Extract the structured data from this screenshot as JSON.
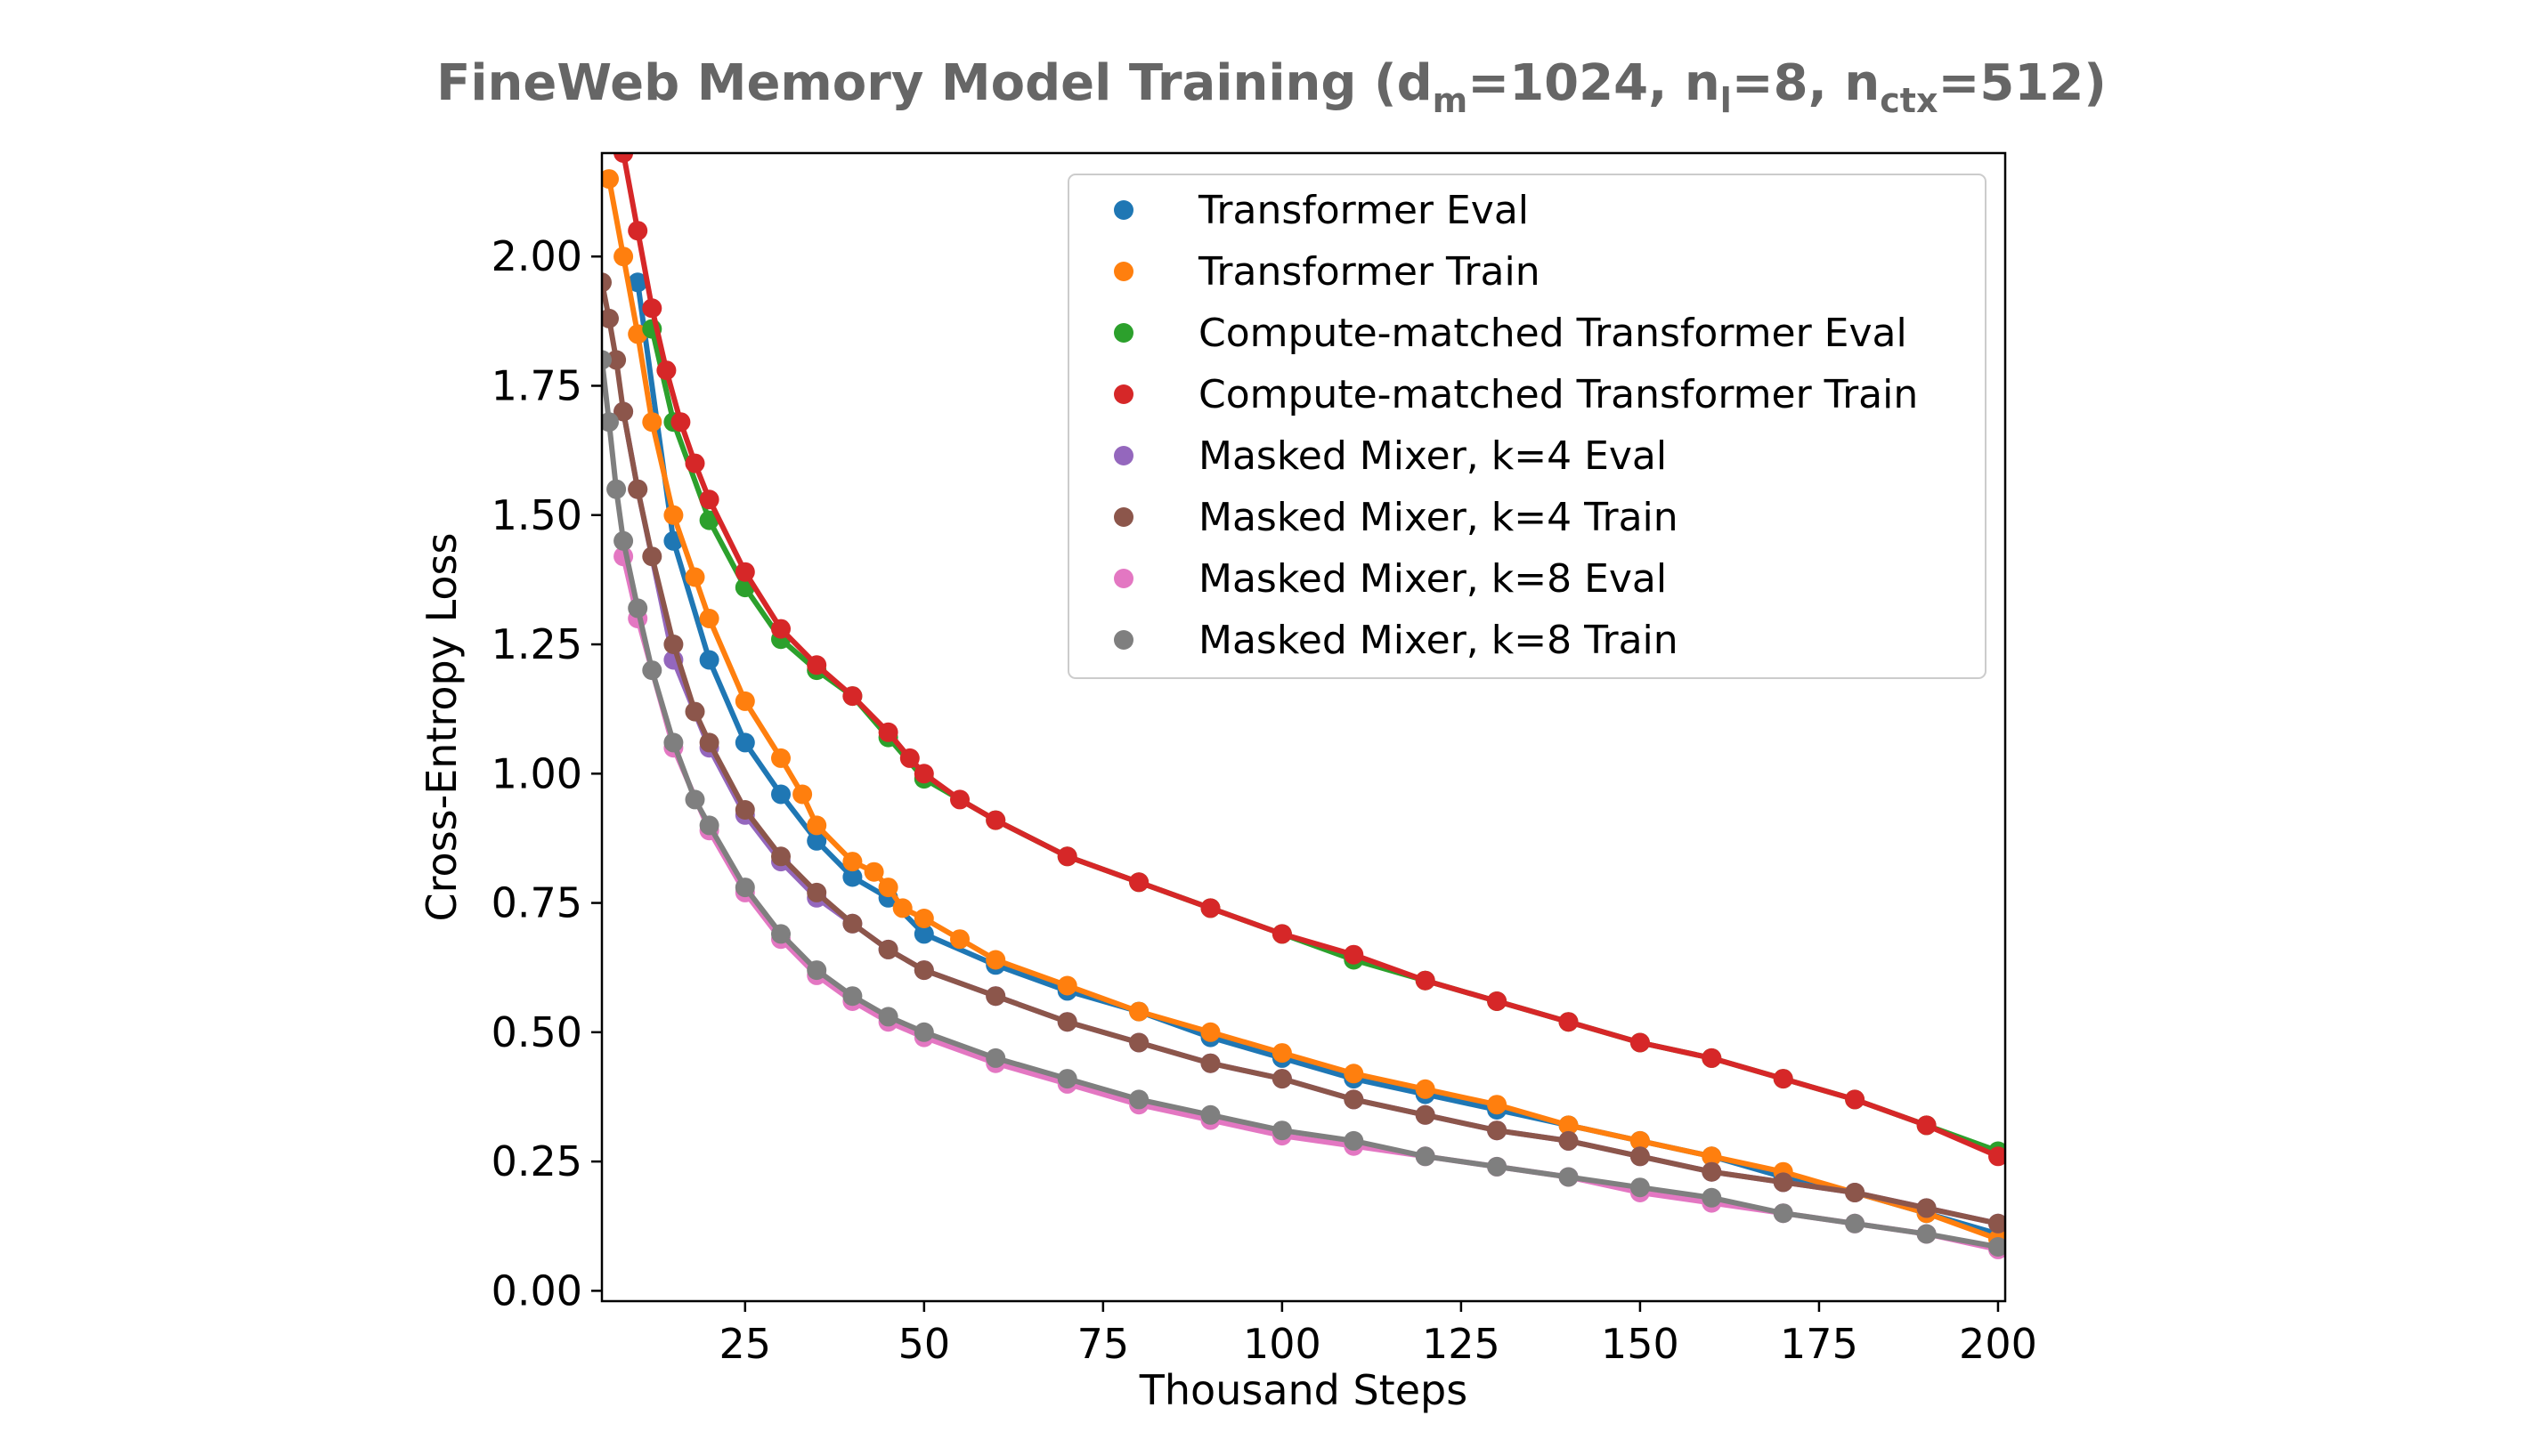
{
  "chart_data": {
    "type": "line",
    "title": {
      "main": "FineWeb Memory Model Training (d",
      "sub_m": "m",
      "part2": "=1024, n",
      "sub_l": "l",
      "part3": "=8, n",
      "sub_ctx": "ctx",
      "part4": "=512)"
    },
    "xlabel": "Thousand Steps",
    "ylabel": "Cross-Entropy Loss",
    "xlim": [
      5,
      201
    ],
    "ylim": [
      -0.02,
      2.2
    ],
    "xticks": [
      25,
      50,
      75,
      100,
      125,
      150,
      175,
      200
    ],
    "xtick_labels": [
      "25",
      "50",
      "75",
      "100",
      "125",
      "150",
      "175",
      "200"
    ],
    "yticks": [
      0.0,
      0.25,
      0.5,
      0.75,
      1.0,
      1.25,
      1.5,
      1.75,
      2.0
    ],
    "ytick_labels": [
      "0.00",
      "0.25",
      "0.50",
      "0.75",
      "1.00",
      "1.25",
      "1.50",
      "1.75",
      "2.00"
    ],
    "grid": false,
    "legend_position": "top-right",
    "series": [
      {
        "name": "Transformer Eval",
        "color": "#1f77b4",
        "x": [
          10,
          15,
          20,
          25,
          30,
          35,
          40,
          45,
          50,
          60,
          70,
          80,
          90,
          100,
          110,
          120,
          130,
          140,
          150,
          160,
          170,
          180,
          190,
          200
        ],
        "y": [
          1.95,
          1.45,
          1.22,
          1.06,
          0.96,
          0.87,
          0.8,
          0.76,
          0.69,
          0.63,
          0.58,
          0.54,
          0.49,
          0.45,
          0.41,
          0.38,
          0.35,
          0.32,
          0.29,
          0.26,
          0.22,
          0.19,
          0.15,
          0.11
        ]
      },
      {
        "name": "Transformer Train",
        "color": "#ff7f0e",
        "x": [
          6,
          8,
          10,
          12,
          15,
          18,
          20,
          25,
          30,
          33,
          35,
          40,
          43,
          45,
          47,
          50,
          55,
          60,
          70,
          80,
          90,
          100,
          110,
          120,
          130,
          140,
          150,
          160,
          170,
          180,
          190,
          200
        ],
        "y": [
          2.15,
          2.0,
          1.85,
          1.68,
          1.5,
          1.38,
          1.3,
          1.14,
          1.03,
          0.96,
          0.9,
          0.83,
          0.81,
          0.78,
          0.74,
          0.72,
          0.68,
          0.64,
          0.59,
          0.54,
          0.5,
          0.46,
          0.42,
          0.39,
          0.36,
          0.32,
          0.29,
          0.26,
          0.23,
          0.19,
          0.15,
          0.1
        ]
      },
      {
        "name": "Compute-matched Transformer Eval",
        "color": "#2ca02c",
        "x": [
          12,
          15,
          20,
          25,
          30,
          35,
          40,
          45,
          50,
          60,
          70,
          80,
          90,
          100,
          110,
          120,
          130,
          140,
          150,
          160,
          170,
          180,
          190,
          200
        ],
        "y": [
          1.86,
          1.68,
          1.49,
          1.36,
          1.26,
          1.2,
          1.15,
          1.07,
          0.99,
          0.91,
          0.84,
          0.79,
          0.74,
          0.69,
          0.64,
          0.6,
          0.56,
          0.52,
          0.48,
          0.45,
          0.41,
          0.37,
          0.32,
          0.27
        ]
      },
      {
        "name": "Compute-matched Transformer Train",
        "color": "#d62728",
        "x": [
          8,
          10,
          12,
          14,
          16,
          18,
          20,
          25,
          30,
          35,
          40,
          45,
          48,
          50,
          55,
          60,
          70,
          80,
          90,
          100,
          110,
          120,
          130,
          140,
          150,
          160,
          170,
          180,
          190,
          200
        ],
        "y": [
          2.2,
          2.05,
          1.9,
          1.78,
          1.68,
          1.6,
          1.53,
          1.39,
          1.28,
          1.21,
          1.15,
          1.08,
          1.03,
          1.0,
          0.95,
          0.91,
          0.84,
          0.79,
          0.74,
          0.69,
          0.65,
          0.6,
          0.56,
          0.52,
          0.48,
          0.45,
          0.41,
          0.37,
          0.32,
          0.26
        ]
      },
      {
        "name": "Masked Mixer, k=4 Eval",
        "color": "#9467bd",
        "x": [
          8,
          10,
          15,
          20,
          25,
          30,
          35,
          40,
          45,
          50,
          60,
          70,
          80,
          90,
          100,
          110,
          120,
          130,
          140,
          150,
          160,
          170,
          180,
          190,
          200
        ],
        "y": [
          1.7,
          1.55,
          1.22,
          1.05,
          0.92,
          0.83,
          0.76,
          0.71,
          0.66,
          0.62,
          0.57,
          0.52,
          0.48,
          0.44,
          0.41,
          0.37,
          0.34,
          0.31,
          0.29,
          0.26,
          0.23,
          0.21,
          0.19,
          0.16,
          0.13
        ]
      },
      {
        "name": "Masked Mixer, k=4 Train",
        "color": "#8c564b",
        "x": [
          5,
          6,
          7,
          8,
          10,
          12,
          15,
          18,
          20,
          25,
          30,
          35,
          40,
          45,
          50,
          60,
          70,
          80,
          90,
          100,
          110,
          120,
          130,
          140,
          150,
          160,
          170,
          180,
          190,
          200
        ],
        "y": [
          1.95,
          1.88,
          1.8,
          1.7,
          1.55,
          1.42,
          1.25,
          1.12,
          1.06,
          0.93,
          0.84,
          0.77,
          0.71,
          0.66,
          0.62,
          0.57,
          0.52,
          0.48,
          0.44,
          0.41,
          0.37,
          0.34,
          0.31,
          0.29,
          0.26,
          0.23,
          0.21,
          0.19,
          0.16,
          0.13
        ]
      },
      {
        "name": "Masked Mixer, k=8 Eval",
        "color": "#e377c2",
        "x": [
          8,
          10,
          15,
          20,
          25,
          30,
          35,
          40,
          45,
          50,
          60,
          70,
          80,
          90,
          100,
          110,
          120,
          130,
          140,
          150,
          160,
          170,
          180,
          190,
          200
        ],
        "y": [
          1.42,
          1.3,
          1.05,
          0.89,
          0.77,
          0.68,
          0.61,
          0.56,
          0.52,
          0.49,
          0.44,
          0.4,
          0.36,
          0.33,
          0.3,
          0.28,
          0.26,
          0.24,
          0.22,
          0.19,
          0.17,
          0.15,
          0.13,
          0.11,
          0.08
        ]
      },
      {
        "name": "Masked Mixer, k=8 Train",
        "color": "#7f7f7f",
        "x": [
          5,
          6,
          7,
          8,
          10,
          12,
          15,
          18,
          20,
          25,
          30,
          35,
          40,
          45,
          50,
          60,
          70,
          80,
          90,
          100,
          110,
          120,
          130,
          140,
          150,
          160,
          170,
          180,
          190,
          200
        ],
        "y": [
          1.8,
          1.68,
          1.55,
          1.45,
          1.32,
          1.2,
          1.06,
          0.95,
          0.9,
          0.78,
          0.69,
          0.62,
          0.57,
          0.53,
          0.5,
          0.45,
          0.41,
          0.37,
          0.34,
          0.31,
          0.29,
          0.26,
          0.24,
          0.22,
          0.2,
          0.18,
          0.15,
          0.13,
          0.11,
          0.085
        ]
      }
    ]
  }
}
